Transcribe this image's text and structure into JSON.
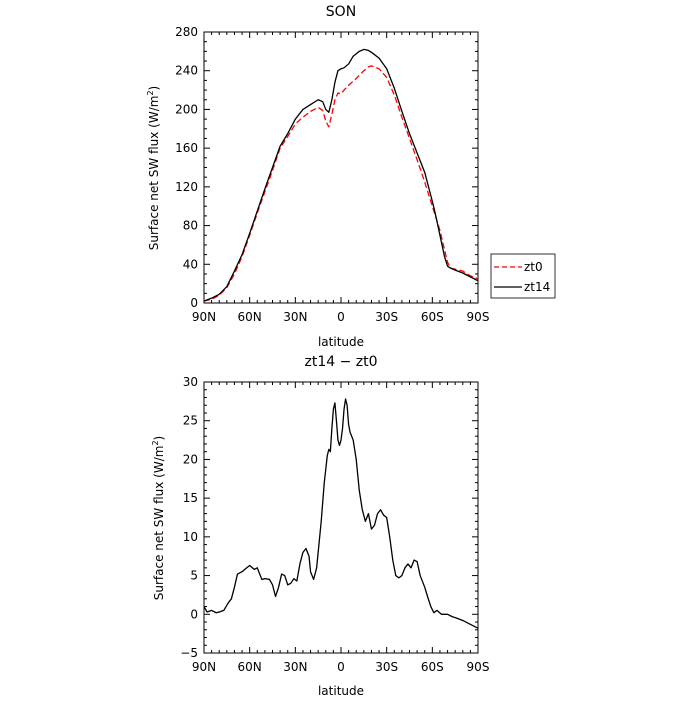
{
  "chart_data": [
    {
      "type": "line",
      "title": "SON",
      "xlabel": "latitude",
      "ylabel_main": "Surface net SW flux (W/m",
      "ylabel_sup": "2",
      "ylabel_tail": ")",
      "xlim": [
        90,
        -90
      ],
      "ylim": [
        0,
        280
      ],
      "x_ticks": [
        {
          "v": 90,
          "label": "90N"
        },
        {
          "v": 60,
          "label": "60N"
        },
        {
          "v": 30,
          "label": "30N"
        },
        {
          "v": 0,
          "label": "0"
        },
        {
          "v": -30,
          "label": "30S"
        },
        {
          "v": -60,
          "label": "60S"
        },
        {
          "v": -90,
          "label": "90S"
        }
      ],
      "y_ticks": [
        {
          "v": 0,
          "label": "0"
        },
        {
          "v": 40,
          "label": "40"
        },
        {
          "v": 80,
          "label": "80"
        },
        {
          "v": 120,
          "label": "120"
        },
        {
          "v": 160,
          "label": "160"
        },
        {
          "v": 200,
          "label": "200"
        },
        {
          "v": 240,
          "label": "240"
        },
        {
          "v": 280,
          "label": "280"
        }
      ],
      "legend_position": "right",
      "series": [
        {
          "name": "zt0",
          "color": "#ff0000",
          "dash": "6,3",
          "points": [
            [
              90,
              2
            ],
            [
              85,
              4
            ],
            [
              80,
              8
            ],
            [
              75,
              16
            ],
            [
              70,
              30
            ],
            [
              65,
              48
            ],
            [
              60,
              70
            ],
            [
              55,
              93
            ],
            [
              50,
              115
            ],
            [
              45,
              137
            ],
            [
              40,
              160
            ],
            [
              35,
              172
            ],
            [
              30,
              185
            ],
            [
              25,
              192
            ],
            [
              20,
              198
            ],
            [
              15,
              202
            ],
            [
              12,
              199
            ],
            [
              10,
              188
            ],
            [
              8,
              182
            ],
            [
              6,
              195
            ],
            [
              4,
              210
            ],
            [
              2,
              217
            ],
            [
              0,
              216
            ],
            [
              -2,
              220
            ],
            [
              -5,
              225
            ],
            [
              -10,
              232
            ],
            [
              -15,
              240
            ],
            [
              -18,
              244
            ],
            [
              -20,
              245
            ],
            [
              -25,
              242
            ],
            [
              -30,
              233
            ],
            [
              -35,
              215
            ],
            [
              -40,
              192
            ],
            [
              -45,
              170
            ],
            [
              -50,
              148
            ],
            [
              -55,
              125
            ],
            [
              -60,
              100
            ],
            [
              -62,
              90
            ],
            [
              -65,
              75
            ],
            [
              -68,
              55
            ],
            [
              -70,
              42
            ],
            [
              -72,
              36
            ],
            [
              -75,
              35
            ],
            [
              -80,
              33
            ],
            [
              -85,
              28
            ],
            [
              -90,
              25
            ]
          ]
        },
        {
          "name": "zt14",
          "color": "#000000",
          "dash": "",
          "points": [
            [
              90,
              2
            ],
            [
              85,
              5
            ],
            [
              80,
              9
            ],
            [
              75,
              17
            ],
            [
              70,
              33
            ],
            [
              65,
              50
            ],
            [
              60,
              72
            ],
            [
              55,
              95
            ],
            [
              50,
              118
            ],
            [
              45,
              140
            ],
            [
              40,
              162
            ],
            [
              35,
              175
            ],
            [
              30,
              190
            ],
            [
              25,
              200
            ],
            [
              20,
              205
            ],
            [
              15,
              210
            ],
            [
              12,
              208
            ],
            [
              10,
              200
            ],
            [
              8,
              197
            ],
            [
              6,
              210
            ],
            [
              4,
              228
            ],
            [
              2,
              240
            ],
            [
              0,
              242
            ],
            [
              -2,
              243
            ],
            [
              -5,
              247
            ],
            [
              -8,
              255
            ],
            [
              -12,
              260
            ],
            [
              -15,
              262
            ],
            [
              -18,
              261
            ],
            [
              -20,
              259
            ],
            [
              -25,
              253
            ],
            [
              -30,
              242
            ],
            [
              -35,
              222
            ],
            [
              -40,
              198
            ],
            [
              -45,
              175
            ],
            [
              -50,
              155
            ],
            [
              -55,
              135
            ],
            [
              -60,
              105
            ],
            [
              -62,
              92
            ],
            [
              -65,
              70
            ],
            [
              -68,
              48
            ],
            [
              -70,
              38
            ],
            [
              -72,
              36
            ],
            [
              -75,
              34
            ],
            [
              -80,
              31
            ],
            [
              -85,
              27
            ],
            [
              -90,
              23
            ]
          ]
        }
      ]
    },
    {
      "type": "line",
      "title": "zt14 − zt0",
      "xlabel": "latitude",
      "ylabel_main": "Surface net SW flux (W/m",
      "ylabel_sup": "2",
      "ylabel_tail": ")",
      "xlim": [
        90,
        -90
      ],
      "ylim": [
        -5,
        30
      ],
      "x_ticks": [
        {
          "v": 90,
          "label": "90N"
        },
        {
          "v": 60,
          "label": "60N"
        },
        {
          "v": 30,
          "label": "30N"
        },
        {
          "v": 0,
          "label": "0"
        },
        {
          "v": -30,
          "label": "30S"
        },
        {
          "v": -60,
          "label": "60S"
        },
        {
          "v": -90,
          "label": "90S"
        }
      ],
      "y_ticks": [
        {
          "v": -5,
          "label": "−5"
        },
        {
          "v": 0,
          "label": "0"
        },
        {
          "v": 5,
          "label": "5"
        },
        {
          "v": 10,
          "label": "10"
        },
        {
          "v": 15,
          "label": "15"
        },
        {
          "v": 20,
          "label": "20"
        },
        {
          "v": 25,
          "label": "25"
        },
        {
          "v": 30,
          "label": "30"
        }
      ],
      "series": [
        {
          "color": "#000000",
          "dash": "",
          "points": [
            [
              90,
              1
            ],
            [
              88,
              0.3
            ],
            [
              85,
              0.5
            ],
            [
              82,
              0.2
            ],
            [
              80,
              0.3
            ],
            [
              77,
              0.5
            ],
            [
              74,
              1.5
            ],
            [
              72,
              2
            ],
            [
              70,
              3.5
            ],
            [
              68,
              5.2
            ],
            [
              65,
              5.5
            ],
            [
              62,
              6
            ],
            [
              60,
              6.3
            ],
            [
              57,
              5.8
            ],
            [
              55,
              6
            ],
            [
              52,
              4.5
            ],
            [
              50,
              4.6
            ],
            [
              47,
              4.5
            ],
            [
              45,
              3.8
            ],
            [
              43,
              2.3
            ],
            [
              41,
              3.5
            ],
            [
              39,
              5.2
            ],
            [
              37,
              5
            ],
            [
              35,
              3.8
            ],
            [
              33,
              4
            ],
            [
              31,
              4.6
            ],
            [
              29,
              4.3
            ],
            [
              27,
              6.5
            ],
            [
              25,
              8
            ],
            [
              23,
              8.5
            ],
            [
              21,
              7.5
            ],
            [
              20,
              5.5
            ],
            [
              18,
              4.5
            ],
            [
              16,
              6
            ],
            [
              15,
              8
            ],
            [
              13,
              12
            ],
            [
              11,
              17
            ],
            [
              9,
              20.5
            ],
            [
              8,
              21.3
            ],
            [
              7,
              21
            ],
            [
              6,
              24
            ],
            [
              5,
              26.5
            ],
            [
              4,
              27.3
            ],
            [
              3,
              25
            ],
            [
              2,
              22.5
            ],
            [
              1,
              21.8
            ],
            [
              0,
              22.5
            ],
            [
              -1,
              24
            ],
            [
              -2,
              26.5
            ],
            [
              -3,
              27.8
            ],
            [
              -4,
              27
            ],
            [
              -5,
              24.5
            ],
            [
              -6,
              23.5
            ],
            [
              -8,
              22.5
            ],
            [
              -10,
              20
            ],
            [
              -12,
              16
            ],
            [
              -14,
              13.5
            ],
            [
              -16,
              12
            ],
            [
              -18,
              13
            ],
            [
              -20,
              11
            ],
            [
              -22,
              11.5
            ],
            [
              -24,
              13
            ],
            [
              -26,
              13.5
            ],
            [
              -28,
              12.8
            ],
            [
              -30,
              12.5
            ],
            [
              -32,
              10
            ],
            [
              -34,
              7
            ],
            [
              -36,
              5
            ],
            [
              -38,
              4.7
            ],
            [
              -40,
              5
            ],
            [
              -42,
              6
            ],
            [
              -44,
              6.5
            ],
            [
              -46,
              6
            ],
            [
              -48,
              7
            ],
            [
              -50,
              6.8
            ],
            [
              -52,
              5
            ],
            [
              -55,
              3.5
            ],
            [
              -57,
              2.2
            ],
            [
              -59,
              1
            ],
            [
              -61,
              0.2
            ],
            [
              -63,
              0.5
            ],
            [
              -66,
              0
            ],
            [
              -70,
              0
            ],
            [
              -73,
              -0.3
            ],
            [
              -76,
              -0.5
            ],
            [
              -80,
              -0.8
            ],
            [
              -84,
              -1.2
            ],
            [
              -87,
              -1.5
            ],
            [
              -90,
              -1.8
            ]
          ]
        }
      ]
    }
  ]
}
